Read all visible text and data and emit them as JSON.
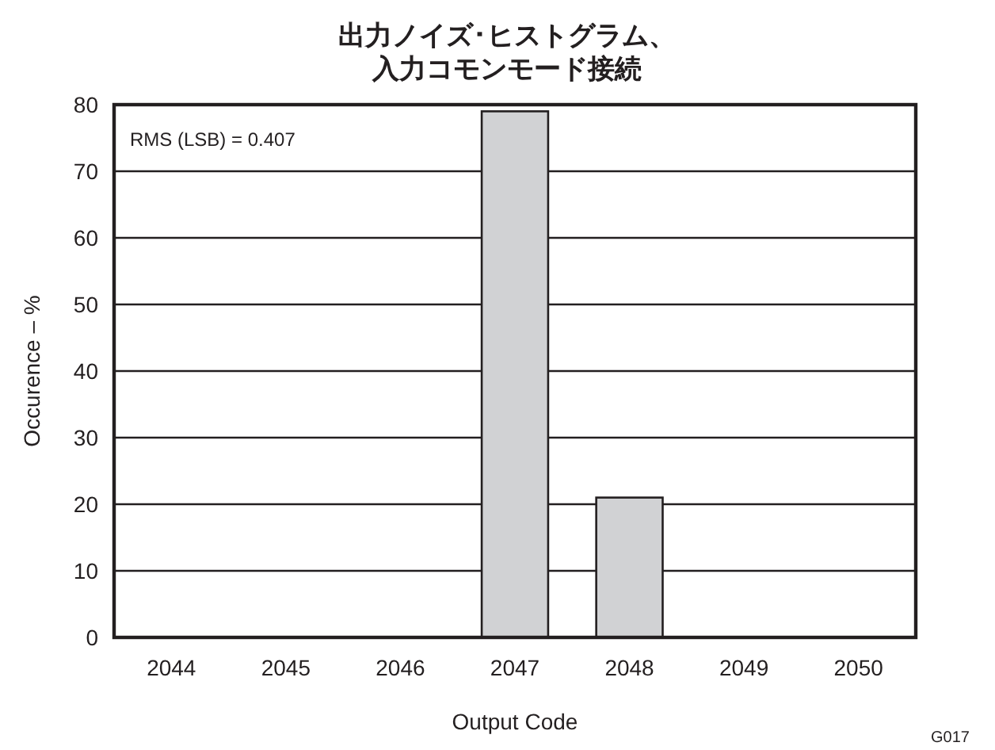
{
  "chart_data": {
    "type": "bar",
    "title": "出力ノイズ･ヒストグラム、",
    "subtitle": "入力コモンモード接続",
    "xlabel": "Output Code",
    "ylabel": "Occurence – %",
    "categories": [
      "2044",
      "2045",
      "2046",
      "2047",
      "2048",
      "2049",
      "2050"
    ],
    "values": [
      0,
      0,
      0,
      79,
      21,
      0,
      0
    ],
    "color": "#d1d2d4",
    "ylim": [
      0,
      80
    ],
    "yticks": [
      0,
      10,
      20,
      30,
      40,
      50,
      60,
      70,
      80
    ],
    "grid": "y",
    "annotations": [
      "RMS (LSB) = 0.407",
      "G017"
    ]
  }
}
